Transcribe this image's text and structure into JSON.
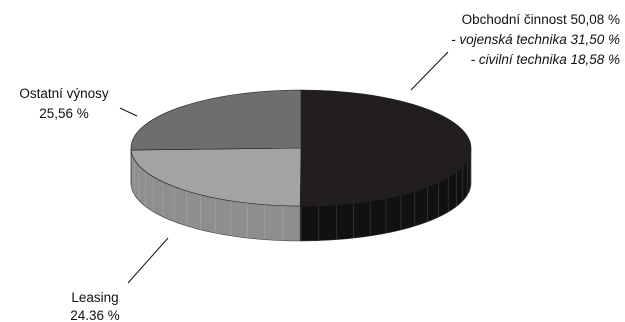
{
  "chart_data": {
    "type": "pie",
    "style": "3d",
    "slices": [
      {
        "label": "Obchodní činnost",
        "value": 50.08,
        "value_text": "50,08 %",
        "color": "#221e1f",
        "side_color": "#111111"
      },
      {
        "label": "Leasing",
        "value": 24.36,
        "value_text": "24.36 %",
        "color": "#a3a3a3",
        "side_color": "#8e8e8e"
      },
      {
        "label": "Ostatní výnosy",
        "value": 25.56,
        "value_text": "25,56 %",
        "color": "#6e6e6e",
        "side_color": "#5a5a5a"
      }
    ],
    "annotations": [
      {
        "for": "Obchodní činnost",
        "text": "- vojenská technika 31,50 %"
      },
      {
        "for": "Obchodní činnost",
        "text": "- civilní technika 18,58 %"
      }
    ],
    "labels": {
      "main": "Obchodní činnost 50,08 %",
      "sub1": "- vojenská technika 31,50 %",
      "sub2": "- civilní technika 18,58 %",
      "other_name": "Ostatní výnosy",
      "other_value": "25,56 %",
      "leasing_name": "Leasing",
      "leasing_value": "24.36 %"
    }
  }
}
